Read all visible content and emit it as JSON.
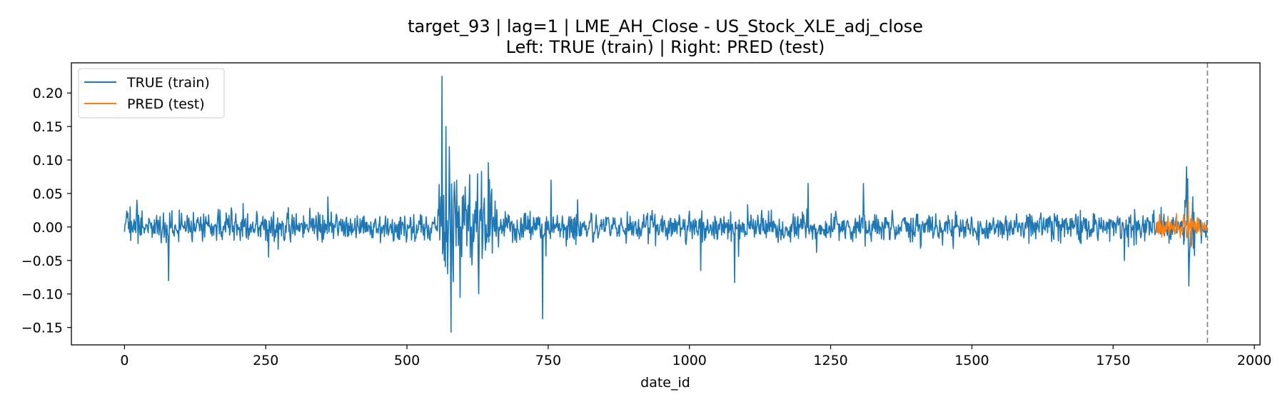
{
  "chart_data": {
    "type": "line",
    "title": "target_93 | lag=1 | LME_AH_Close - US_Stock_XLE_adj_close",
    "subtitle": "Left: TRUE (train) | Right: PRED (test)",
    "xlabel": "date_id",
    "ylabel": "",
    "xlim": [
      -94,
      2010
    ],
    "ylim": [
      -0.176,
      0.245
    ],
    "x_ticks": [
      0,
      250,
      500,
      750,
      1000,
      1250,
      1500,
      1750,
      2000
    ],
    "x_tick_labels": [
      "0",
      "250",
      "500",
      "750",
      "1000",
      "1250",
      "1500",
      "1750",
      "2000"
    ],
    "y_ticks": [
      0.2,
      0.15,
      0.1,
      0.05,
      0.0,
      -0.05,
      -0.1,
      -0.15
    ],
    "y_tick_labels": [
      "0.20",
      "0.15",
      "0.10",
      "0.05",
      "0.00",
      "−0.05",
      "−0.10",
      "−0.15"
    ],
    "grid": false,
    "legend_position": "top-left",
    "vline": {
      "x": 1917,
      "style": "dashed",
      "color": "#808080"
    },
    "series": [
      {
        "name": "TRUE (train)",
        "color": "#1f77b4",
        "x_start": 0,
        "x_end": 1916,
        "baseline_amplitude": 0.015,
        "high_volatility_regions": [
          {
            "from": 555,
            "to": 660,
            "amplitude": 0.05
          },
          {
            "from": 1875,
            "to": 1895,
            "amplitude": 0.04
          }
        ],
        "extreme_points": [
          {
            "x": 10,
            "y": 0.03
          },
          {
            "x": 22,
            "y": 0.04
          },
          {
            "x": 78,
            "y": -0.08
          },
          {
            "x": 210,
            "y": 0.035
          },
          {
            "x": 255,
            "y": -0.045
          },
          {
            "x": 360,
            "y": 0.045
          },
          {
            "x": 562,
            "y": 0.225
          },
          {
            "x": 566,
            "y": -0.05
          },
          {
            "x": 569,
            "y": 0.15
          },
          {
            "x": 572,
            "y": -0.07
          },
          {
            "x": 575,
            "y": 0.12
          },
          {
            "x": 578,
            "y": -0.157
          },
          {
            "x": 588,
            "y": 0.07
          },
          {
            "x": 594,
            "y": -0.105
          },
          {
            "x": 632,
            "y": 0.083
          },
          {
            "x": 740,
            "y": -0.137
          },
          {
            "x": 755,
            "y": 0.07
          },
          {
            "x": 1020,
            "y": -0.065
          },
          {
            "x": 1080,
            "y": -0.083
          },
          {
            "x": 1210,
            "y": 0.065
          },
          {
            "x": 1308,
            "y": 0.065
          },
          {
            "x": 1770,
            "y": -0.05
          },
          {
            "x": 1880,
            "y": 0.09
          },
          {
            "x": 1884,
            "y": -0.088
          }
        ]
      },
      {
        "name": "PRED (test)",
        "color": "#ff7f0e",
        "x_start": 1827,
        "x_end": 1916,
        "baseline_amplitude": 0.012,
        "extreme_points": [
          {
            "x": 1862,
            "y": 0.02
          },
          {
            "x": 1883,
            "y": 0.04
          },
          {
            "x": 1888,
            "y": -0.03
          }
        ]
      }
    ]
  }
}
